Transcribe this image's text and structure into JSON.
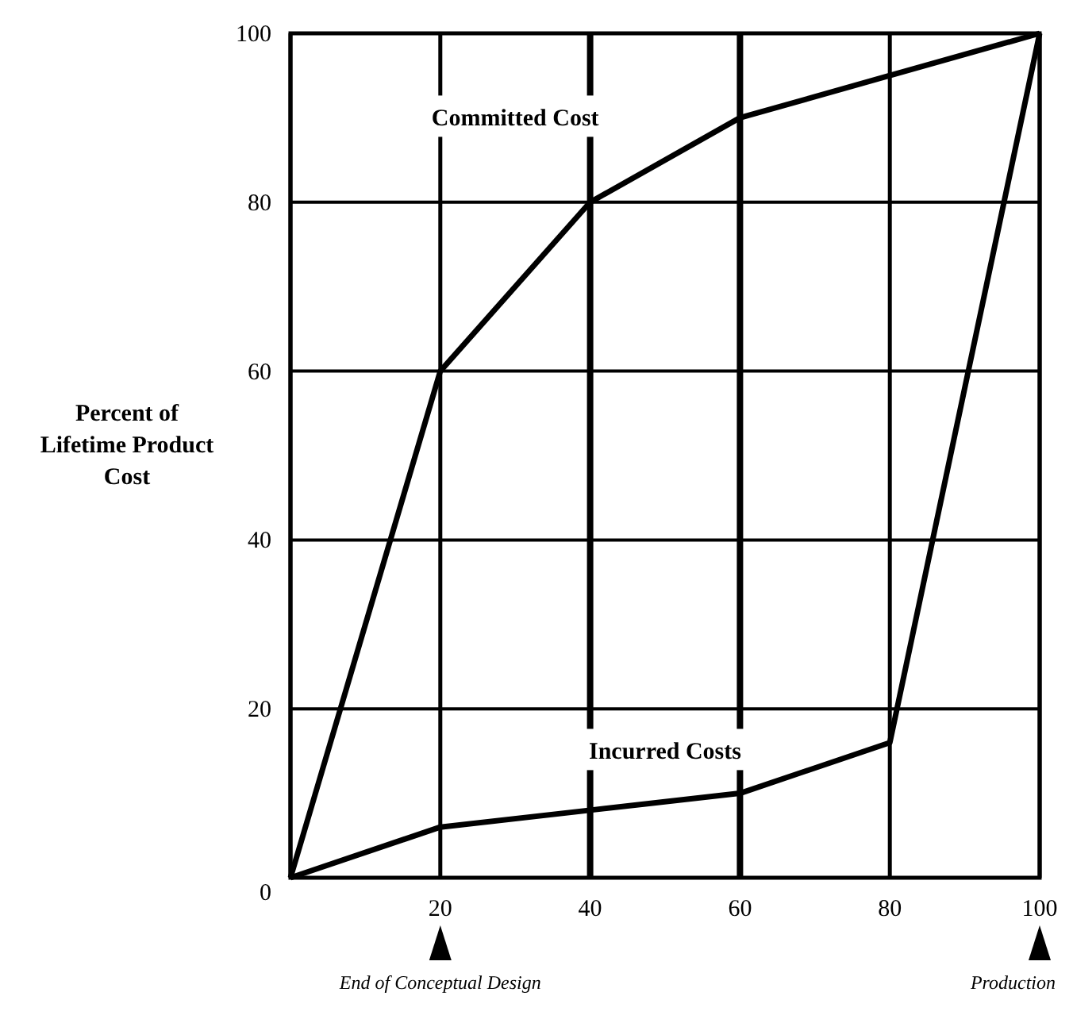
{
  "chart_data": {
    "type": "line",
    "ylabel": "Percent of Lifetime Product Cost",
    "xlim": [
      0,
      100
    ],
    "ylim": [
      0,
      100
    ],
    "xticks": [
      {
        "value": 0,
        "label": null
      },
      20,
      40,
      60,
      80,
      100
    ],
    "yticks": [
      0,
      20,
      40,
      60,
      80,
      100
    ],
    "grid": true,
    "marker": "none",
    "line_style": "solid",
    "x": [
      0,
      20,
      40,
      60,
      80,
      100
    ],
    "series": [
      {
        "name": "Committed Cost",
        "color": "#000000",
        "values": [
          0,
          60,
          80,
          90,
          95,
          100
        ]
      },
      {
        "name": "Incurred Costs",
        "color": "#000000",
        "values": [
          0,
          6,
          8,
          10,
          16,
          100
        ]
      }
    ],
    "annotations": [
      "End of Conceptual Design",
      "Production"
    ]
  }
}
